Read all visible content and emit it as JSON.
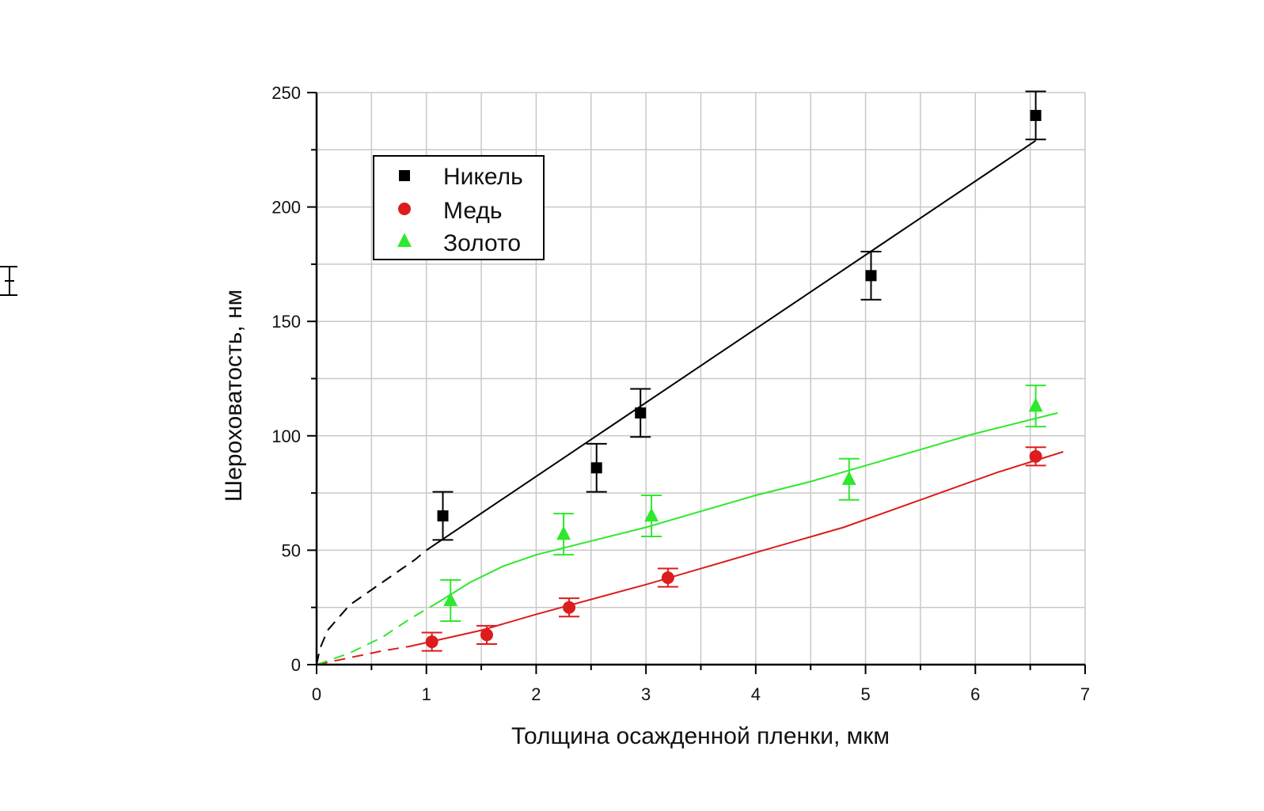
{
  "chart_data": {
    "type": "scatter",
    "title": "",
    "xlabel": "Толщина осажденной пленки, мкм",
    "ylabel": "Шероховатость, нм",
    "xlim": [
      0,
      7
    ],
    "ylim": [
      0,
      250
    ],
    "xticks": [
      "0",
      "1",
      "2",
      "3",
      "4",
      "5",
      "6",
      "7"
    ],
    "yticks": [
      "0",
      "50",
      "100",
      "150",
      "200",
      "250"
    ],
    "grid": true,
    "legend_position": "top-left",
    "series": [
      {
        "name": "Никель",
        "color": "#000000",
        "marker": "square",
        "points": [
          {
            "x": 1.15,
            "y": 65,
            "err": 10.5
          },
          {
            "x": 2.55,
            "y": 86,
            "err": 10.5
          },
          {
            "x": 2.95,
            "y": 110,
            "err": 10.5
          },
          {
            "x": 5.05,
            "y": 170,
            "err": 10.5
          },
          {
            "x": 6.55,
            "y": 240,
            "err": 10.5
          }
        ],
        "fit_solid": [
          [
            1.0,
            50
          ],
          [
            6.55,
            229
          ]
        ],
        "fit_dashed": [
          [
            0.0,
            0
          ],
          [
            0.03,
            7
          ],
          [
            0.1,
            15
          ],
          [
            0.3,
            26
          ],
          [
            0.6,
            36
          ],
          [
            0.9,
            46
          ],
          [
            1.0,
            50
          ]
        ]
      },
      {
        "name": "Медь",
        "color": "#dd1c1c",
        "marker": "circle",
        "points": [
          {
            "x": 1.05,
            "y": 10,
            "err": 4
          },
          {
            "x": 1.55,
            "y": 13,
            "err": 4
          },
          {
            "x": 2.3,
            "y": 25,
            "err": 4
          },
          {
            "x": 3.2,
            "y": 38,
            "err": 4
          },
          {
            "x": 6.55,
            "y": 91,
            "err": 4
          }
        ],
        "fit_solid": [
          [
            0.85,
            8
          ],
          [
            1.5,
            15
          ],
          [
            2.0,
            22
          ],
          [
            3.0,
            35
          ],
          [
            4.0,
            49
          ],
          [
            4.8,
            60
          ],
          [
            5.5,
            72
          ],
          [
            6.2,
            84
          ],
          [
            6.8,
            93
          ]
        ],
        "fit_dashed": [
          [
            0.0,
            0
          ],
          [
            0.3,
            3
          ],
          [
            0.6,
            6
          ],
          [
            0.85,
            8
          ]
        ]
      },
      {
        "name": "Золото",
        "color": "#2ee82e",
        "marker": "triangle",
        "points": [
          {
            "x": 1.22,
            "y": 28,
            "err": 9
          },
          {
            "x": 2.25,
            "y": 57,
            "err": 9
          },
          {
            "x": 3.05,
            "y": 65,
            "err": 9
          },
          {
            "x": 4.85,
            "y": 81,
            "err": 9
          },
          {
            "x": 6.55,
            "y": 113,
            "err": 9
          }
        ],
        "fit_solid": [
          [
            1.1,
            27
          ],
          [
            1.4,
            36
          ],
          [
            1.7,
            43
          ],
          [
            2.0,
            48
          ],
          [
            2.5,
            54
          ],
          [
            3.0,
            60
          ],
          [
            3.5,
            67
          ],
          [
            4.0,
            74
          ],
          [
            4.5,
            80
          ],
          [
            5.0,
            87
          ],
          [
            5.5,
            94
          ],
          [
            6.0,
            101
          ],
          [
            6.75,
            110
          ]
        ],
        "fit_dashed": [
          [
            0.0,
            0
          ],
          [
            0.3,
            5
          ],
          [
            0.6,
            12
          ],
          [
            0.85,
            20
          ],
          [
            1.1,
            27
          ]
        ]
      }
    ]
  },
  "stray_mark": {
    "color": "#000000"
  }
}
